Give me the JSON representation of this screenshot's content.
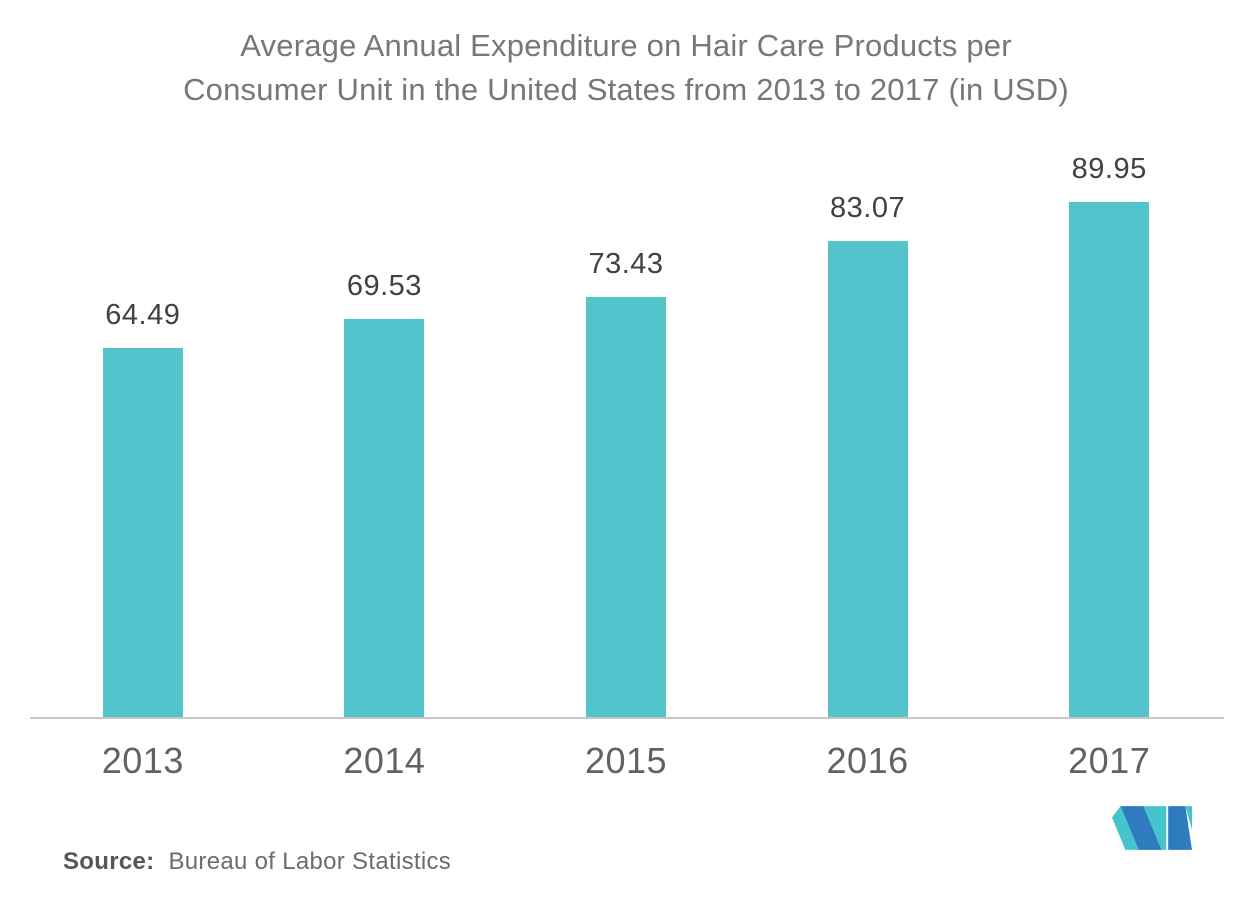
{
  "chart_data": {
    "type": "bar",
    "title": "Average Annual Expenditure on Hair Care Products per Consumer Unit in the United States from 2013 to 2017 (in USD)",
    "title_line1": "Average Annual Expenditure on Hair Care Products per",
    "title_line2": "Consumer Unit in the United States from 2013 to 2017 (in USD)",
    "categories": [
      "2013",
      "2014",
      "2015",
      "2016",
      "2017"
    ],
    "values": [
      64.49,
      69.53,
      73.43,
      83.07,
      89.95
    ],
    "value_labels": [
      "64.49",
      "69.53",
      "73.43",
      "83.07",
      "89.95"
    ],
    "xlabel": "",
    "ylabel": "",
    "ylim": [
      0,
      95
    ],
    "grid": false,
    "legend": "none",
    "bar_color": "#53c4cc"
  },
  "source": {
    "label": "Source:",
    "text": "Bureau of Labor Statistics"
  },
  "logo": {
    "name": "mordor-intelligence-m-logo",
    "teal": "#44c5ce",
    "blue": "#2e7cbd"
  }
}
